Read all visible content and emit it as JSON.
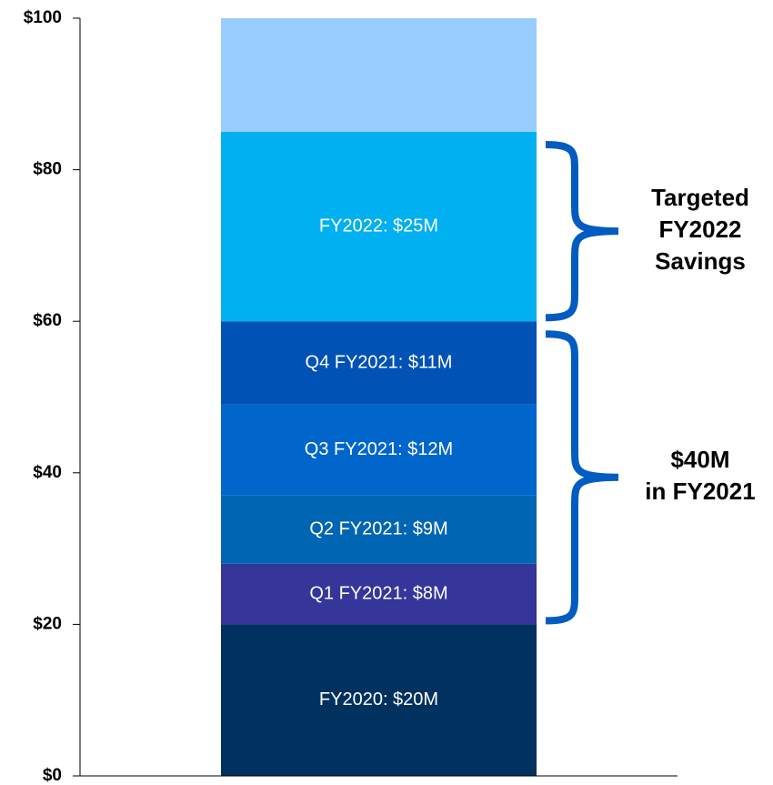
{
  "chart_data": {
    "type": "stacked_bar",
    "series": [
      {
        "color": "#00315f",
        "values": [
          20
        ],
        "value_labels": [
          "FY2020: $20M"
        ]
      },
      {
        "color": "#35359a",
        "values": [
          8
        ],
        "value_labels": [
          "Q1 FY2021: $8M"
        ]
      },
      {
        "color": "#0066b3",
        "values": [
          9
        ],
        "value_labels": [
          "Q2 FY2021: $9M"
        ]
      },
      {
        "color": "#0066cc",
        "values": [
          12
        ],
        "value_labels": [
          "Q3 FY2021: $12M"
        ]
      },
      {
        "color": "#0052b4",
        "values": [
          11
        ],
        "value_labels": [
          "Q4 FY2021: $11M"
        ]
      },
      {
        "color": "#00b0f0",
        "values": [
          25
        ],
        "value_labels": [
          "FY2022: $25M"
        ]
      },
      {
        "color": "#99ccff",
        "values": [
          15
        ]
      }
    ],
    "ylim": [
      0,
      100
    ],
    "yticks": [
      {
        "value": 0,
        "label": "$0"
      },
      {
        "value": 20,
        "label": "$20"
      },
      {
        "value": 40,
        "label": "$40"
      },
      {
        "value": 60,
        "label": "$60"
      },
      {
        "value": 80,
        "label": "$80"
      },
      {
        "value": 100,
        "label": "$100"
      }
    ],
    "annotations": [
      {
        "text": [
          "Targeted",
          "FY2022",
          "Savings"
        ],
        "span": [
          60,
          85
        ],
        "color": "#005cc0"
      },
      {
        "text": [
          "$40M",
          "in FY2021"
        ],
        "span": [
          20,
          60
        ],
        "color": "#005cc0"
      }
    ]
  }
}
